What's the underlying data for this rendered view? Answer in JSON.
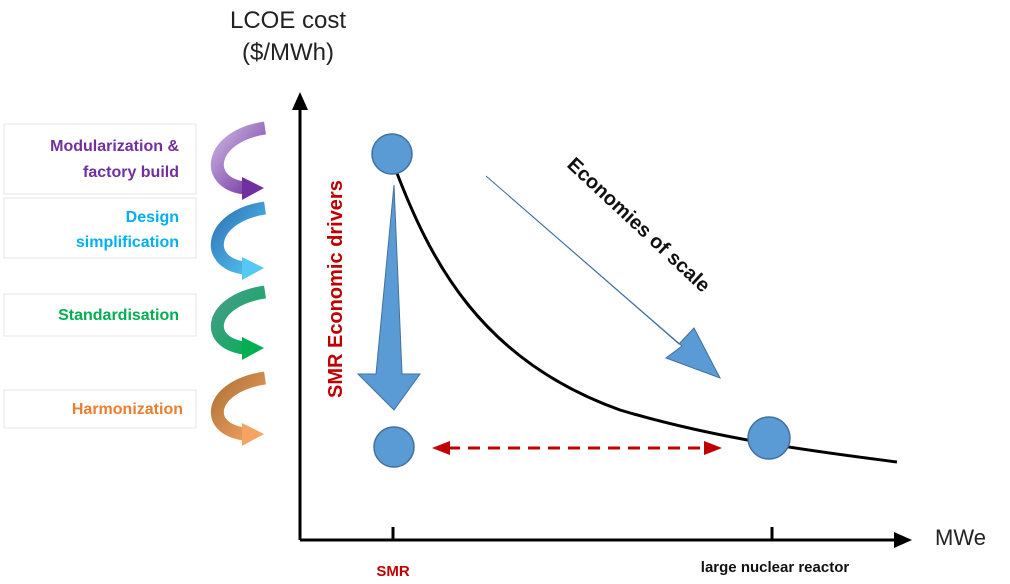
{
  "y_axis": {
    "title_line1": "LCOE cost",
    "title_line2": "($/MWh)"
  },
  "x_axis": {
    "title": "MWe",
    "ticks": [
      "SMR",
      "large nuclear reactor"
    ]
  },
  "drivers": [
    {
      "label_line1": "Modularization &",
      "label_line2": "factory build",
      "color": "#7030a0"
    },
    {
      "label_line1": "Design",
      "label_line2": "simplification",
      "color": "#00b0f0"
    },
    {
      "label_line1": "Standardisation",
      "label_line2": "",
      "color": "#00b050"
    },
    {
      "label_line1": "Harmonization",
      "label_line2": "",
      "color": "#ed7d31"
    }
  ],
  "annotations": {
    "economies_of_scale": "Economies of scale",
    "smr_economic_drivers": "SMR Economic drivers"
  },
  "colors": {
    "accent_blue": "#5b9bd5",
    "axis": "#000000",
    "curve": "#000000",
    "dashed_arrow": "#c00000"
  }
}
